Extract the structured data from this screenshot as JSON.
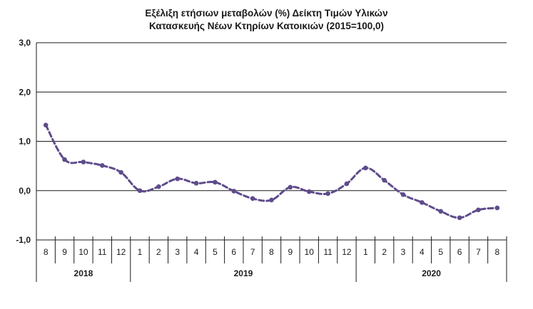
{
  "chart_data": {
    "type": "line",
    "title_line1": "Εξέλιξη ετήσιων μεταβολών (%) Δείκτη Τιμών Υλικών",
    "title_line2": "Κατασκευής Νέων Κτηρίων Κατοικιών (2015=100,0)",
    "ylim": [
      -1.0,
      3.0
    ],
    "yticks": [
      "-1,0",
      "0,0",
      "1,0",
      "2,0",
      "3,0"
    ],
    "ytick_values": [
      -1.0,
      0.0,
      1.0,
      2.0,
      3.0
    ],
    "grid": true,
    "legend": "none",
    "line_color": "#5f4b8b",
    "categories": [
      "8",
      "9",
      "10",
      "11",
      "12",
      "1",
      "2",
      "3",
      "4",
      "5",
      "6",
      "7",
      "8",
      "9",
      "10",
      "11",
      "12",
      "1",
      "2",
      "3",
      "4",
      "5",
      "6",
      "7",
      "8"
    ],
    "years": [
      {
        "label": "2018",
        "count": 5
      },
      {
        "label": "2019",
        "count": 12
      },
      {
        "label": "2020",
        "count": 8
      }
    ],
    "series": [
      {
        "values": [
          1.33,
          0.63,
          0.58,
          0.51,
          0.37,
          0.0,
          0.08,
          0.24,
          0.15,
          0.17,
          -0.01,
          -0.16,
          -0.19,
          0.07,
          -0.02,
          -0.06,
          0.14,
          0.46,
          0.21,
          -0.08,
          -0.24,
          -0.42,
          -0.55,
          -0.39,
          -0.35
        ]
      }
    ]
  }
}
